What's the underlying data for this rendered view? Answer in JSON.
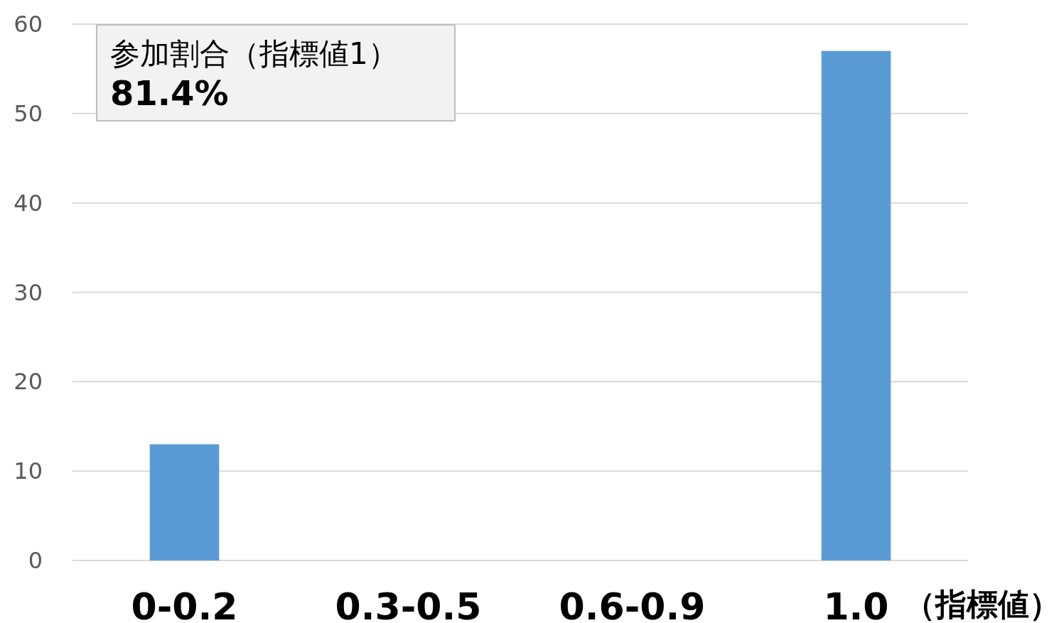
{
  "chart_data": {
    "type": "bar",
    "categories": [
      "0-0.2",
      "0.3-0.5",
      "0.6-0.9",
      "1.0"
    ],
    "values": [
      13,
      0,
      0,
      57
    ],
    "color": "#5b9bd5",
    "xlabel": "（指標値）",
    "ylim": [
      0,
      60
    ],
    "yticks": [
      0,
      10,
      20,
      30,
      40,
      50,
      60
    ],
    "grid": "y",
    "annotations": [
      "参加割合（指標値1）\n**81.4%**"
    ]
  }
}
